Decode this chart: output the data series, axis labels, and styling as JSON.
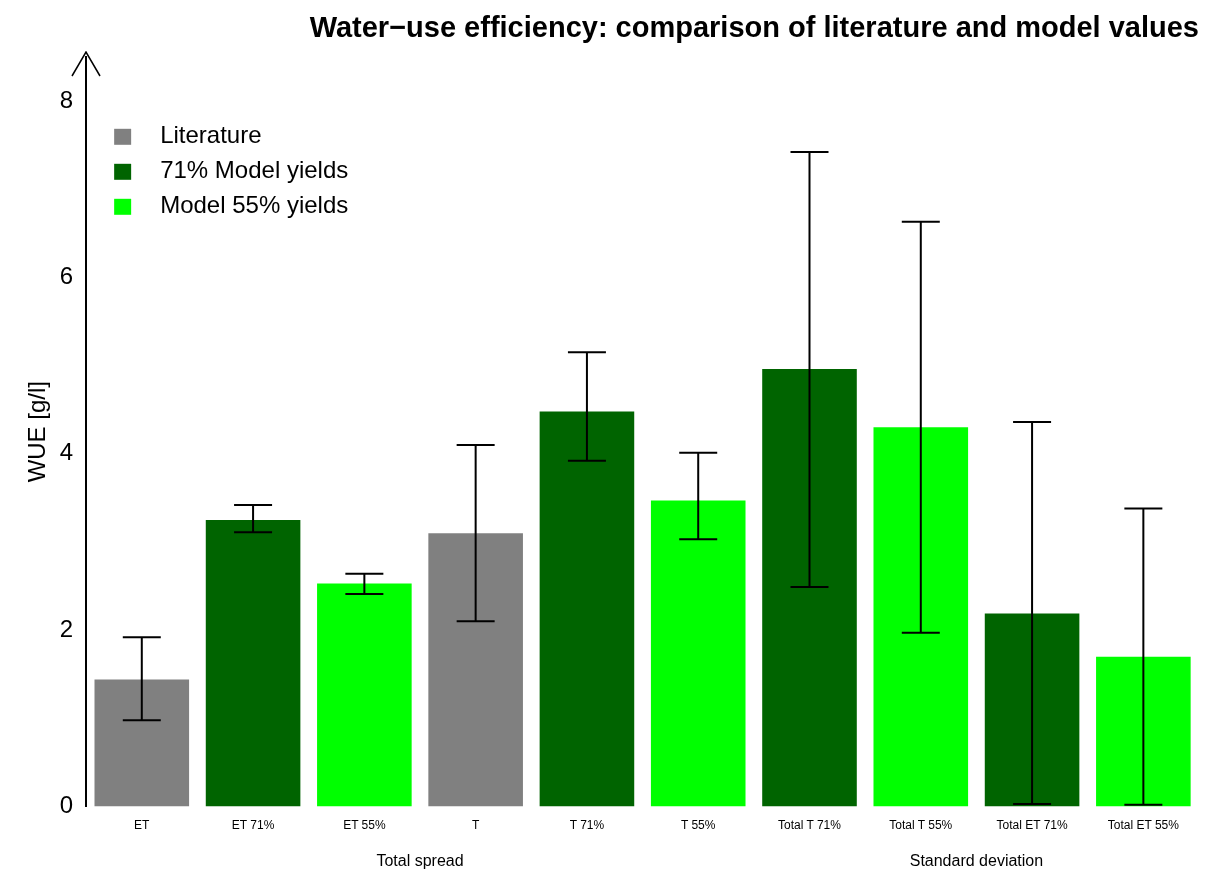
{
  "chart_data": {
    "type": "bar",
    "title": "Water−use efficiency: comparison of literature and model values",
    "ylabel": "WUE [g/l]",
    "categories": [
      "ET",
      "ET 71%",
      "ET 55%",
      "T",
      "T 71%",
      "T 55%",
      "Total T 71%",
      "Total T 55%",
      "Total ET 71%",
      "Total ET 55%"
    ],
    "series": [
      {
        "name": "Literature",
        "color": "#808080",
        "values": [
          1.44,
          null,
          null,
          3.1,
          null,
          null,
          null,
          null,
          null,
          null
        ],
        "errors": [
          [
            0.98,
            1.92
          ],
          null,
          null,
          [
            2.1,
            4.1
          ],
          null,
          null,
          null,
          null,
          null,
          null
        ]
      },
      {
        "name": "71% Model yields",
        "color": "#006400",
        "values": [
          null,
          3.25,
          null,
          null,
          4.48,
          null,
          4.96,
          null,
          2.19,
          null
        ],
        "errors": [
          null,
          [
            3.11,
            3.42
          ],
          null,
          null,
          [
            3.92,
            5.15
          ],
          null,
          [
            2.49,
            7.42
          ],
          null,
          [
            0.03,
            4.36
          ],
          null
        ]
      },
      {
        "name": "Model 55% yields",
        "color": "#00ff00",
        "values": [
          null,
          null,
          2.53,
          null,
          null,
          3.47,
          null,
          4.3,
          null,
          1.7
        ],
        "errors": [
          null,
          null,
          [
            2.41,
            2.64
          ],
          null,
          null,
          [
            3.03,
            4.01
          ],
          null,
          [
            1.97,
            6.63
          ],
          null,
          [
            0.02,
            3.38
          ]
        ]
      }
    ],
    "ylim": [
      0,
      8.5
    ],
    "yticks": [
      0,
      2,
      4,
      6,
      8
    ],
    "grid": false,
    "legend": "top left",
    "annotations": [
      "Total spread",
      "Standard deviation"
    ]
  }
}
